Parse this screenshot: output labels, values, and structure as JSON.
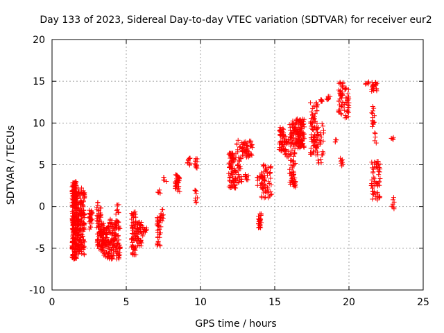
{
  "chart_data": {
    "type": "scatter",
    "title": "Day 133 of 2023, Sidereal Day-to-day VTEC variation (SDTVAR) for receiver eur2",
    "xlabel": "GPS time / hours",
    "ylabel": "SDTVAR / TECUs",
    "xlim": [
      0,
      25
    ],
    "ylim": [
      -10,
      20
    ],
    "xticks": [
      "0",
      "5",
      "10",
      "15",
      "20",
      "25"
    ],
    "yticks": [
      "-10",
      "-5",
      "0",
      "5",
      "10",
      "15",
      "20"
    ],
    "grid": true,
    "marker": "+",
    "color": "#ff0000",
    "clusters": [
      {
        "x": [
          1.35,
          1.65
        ],
        "y": [
          -6.3,
          3.0
        ],
        "n": 260
      },
      {
        "x": [
          1.6,
          2.2
        ],
        "y": [
          -5.8,
          2.4
        ],
        "n": 200
      },
      {
        "x": [
          2.5,
          2.75
        ],
        "y": [
          -3.4,
          -0.3
        ],
        "n": 30
      },
      {
        "x": [
          3.0,
          3.3
        ],
        "y": [
          -5.3,
          0.6
        ],
        "n": 60
      },
      {
        "x": [
          3.3,
          3.7
        ],
        "y": [
          -6.0,
          -2.0
        ],
        "n": 80
      },
      {
        "x": [
          3.7,
          4.6
        ],
        "y": [
          -6.3,
          -1.5
        ],
        "n": 150
      },
      {
        "x": [
          4.3,
          4.5
        ],
        "y": [
          -1.0,
          0.3
        ],
        "n": 8
      },
      {
        "x": [
          5.35,
          5.65
        ],
        "y": [
          -5.8,
          -0.6
        ],
        "n": 70
      },
      {
        "x": [
          5.65,
          6.05
        ],
        "y": [
          -4.8,
          -1.8
        ],
        "n": 50
      },
      {
        "x": [
          6.1,
          6.4
        ],
        "y": [
          -3.6,
          -2.4
        ],
        "n": 14
      },
      {
        "x": [
          7.05,
          7.35
        ],
        "y": [
          -4.8,
          -1.0
        ],
        "n": 30
      },
      {
        "x": [
          7.25,
          7.5
        ],
        "y": [
          -2.0,
          0.0
        ],
        "n": 14
      },
      {
        "x": [
          7.1,
          7.3
        ],
        "y": [
          1.6,
          2.0
        ],
        "n": 5
      },
      {
        "x": [
          7.5,
          7.7
        ],
        "y": [
          3.0,
          3.6
        ],
        "n": 5
      },
      {
        "x": [
          8.3,
          8.6
        ],
        "y": [
          1.7,
          3.9
        ],
        "n": 35
      },
      {
        "x": [
          9.1,
          9.3
        ],
        "y": [
          4.8,
          5.8
        ],
        "n": 10
      },
      {
        "x": [
          9.6,
          9.8
        ],
        "y": [
          4.6,
          6.0
        ],
        "n": 12
      },
      {
        "x": [
          9.6,
          9.8
        ],
        "y": [
          0.3,
          2.0
        ],
        "n": 10
      },
      {
        "x": [
          11.9,
          12.4
        ],
        "y": [
          2.2,
          6.5
        ],
        "n": 90
      },
      {
        "x": [
          12.4,
          12.8
        ],
        "y": [
          2.5,
          8.0
        ],
        "n": 35
      },
      {
        "x": [
          12.8,
          13.5
        ],
        "y": [
          5.8,
          8.0
        ],
        "n": 50
      },
      {
        "x": [
          13.0,
          13.3
        ],
        "y": [
          3.0,
          4.0
        ],
        "n": 10
      },
      {
        "x": [
          13.9,
          14.1
        ],
        "y": [
          -2.7,
          -0.8
        ],
        "n": 25
      },
      {
        "x": [
          13.8,
          14.2
        ],
        "y": [
          2.5,
          3.8
        ],
        "n": 15
      },
      {
        "x": [
          14.1,
          14.8
        ],
        "y": [
          1.0,
          5.1
        ],
        "n": 60
      },
      {
        "x": [
          15.3,
          15.7
        ],
        "y": [
          6.6,
          9.6
        ],
        "n": 55
      },
      {
        "x": [
          15.7,
          16.0
        ],
        "y": [
          5.8,
          8.5
        ],
        "n": 20
      },
      {
        "x": [
          16.0,
          16.4
        ],
        "y": [
          2.5,
          10.3
        ],
        "n": 90
      },
      {
        "x": [
          16.4,
          17.0
        ],
        "y": [
          7.0,
          10.5
        ],
        "n": 120
      },
      {
        "x": [
          16.2,
          16.4
        ],
        "y": [
          2.2,
          3.3
        ],
        "n": 8
      },
      {
        "x": [
          17.4,
          17.9
        ],
        "y": [
          6.0,
          12.5
        ],
        "n": 80
      },
      {
        "x": [
          17.9,
          18.3
        ],
        "y": [
          5.2,
          10.0
        ],
        "n": 25
      },
      {
        "x": [
          18.1,
          18.4
        ],
        "y": [
          12.4,
          12.8
        ],
        "n": 6
      },
      {
        "x": [
          18.5,
          18.8
        ],
        "y": [
          12.8,
          13.2
        ],
        "n": 8
      },
      {
        "x": [
          19.3,
          19.6
        ],
        "y": [
          11.0,
          15.0
        ],
        "n": 40
      },
      {
        "x": [
          19.7,
          20.0
        ],
        "y": [
          10.4,
          14.2
        ],
        "n": 30
      },
      {
        "x": [
          19.4,
          19.6
        ],
        "y": [
          4.8,
          6.0
        ],
        "n": 8
      },
      {
        "x": [
          19.0,
          19.2
        ],
        "y": [
          7.6,
          8.2
        ],
        "n": 4
      },
      {
        "x": [
          21.1,
          21.4
        ],
        "y": [
          14.5,
          15.0
        ],
        "n": 6
      },
      {
        "x": [
          21.5,
          21.9
        ],
        "y": [
          13.8,
          14.9
        ],
        "n": 22
      },
      {
        "x": [
          21.5,
          21.8
        ],
        "y": [
          9.5,
          12.0
        ],
        "n": 14
      },
      {
        "x": [
          21.7,
          21.9
        ],
        "y": [
          7.5,
          9.0
        ],
        "n": 5
      },
      {
        "x": [
          21.5,
          22.1
        ],
        "y": [
          0.5,
          5.5
        ],
        "n": 60
      },
      {
        "x": [
          22.85,
          23.05
        ],
        "y": [
          8.0,
          8.4
        ],
        "n": 5
      },
      {
        "x": [
          22.85,
          23.05
        ],
        "y": [
          -0.3,
          1.2
        ],
        "n": 8
      }
    ]
  }
}
